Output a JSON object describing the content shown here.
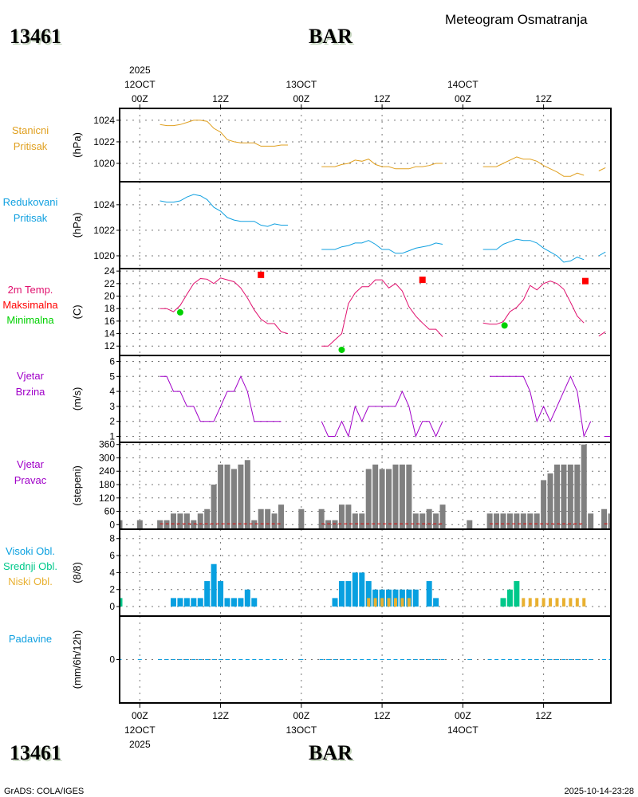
{
  "header": {
    "station_id": "13461",
    "station_name": "BAR",
    "title": "Meteogram Osmatranja"
  },
  "footer": {
    "credit": "GrADS: COLA/IGES",
    "timestamp": "2025-10-14-23:28"
  },
  "time_axis": {
    "year": "2025",
    "day_labels": [
      {
        "hour": 0,
        "label": "12OCT"
      },
      {
        "hour": 24,
        "label": "13OCT"
      },
      {
        "hour": 48,
        "label": "14OCT"
      }
    ],
    "hour_labels": [
      {
        "hour": 0,
        "label": "00Z"
      },
      {
        "hour": 12,
        "label": "12Z"
      },
      {
        "hour": 24,
        "label": "00Z"
      },
      {
        "hour": 36,
        "label": "12Z"
      },
      {
        "hour": 48,
        "label": "00Z"
      },
      {
        "hour": 60,
        "label": "12Z"
      }
    ],
    "xlim_hours": [
      -3,
      70
    ]
  },
  "colors": {
    "station_pressure": "#e0a020",
    "reduced_pressure": "#10a0e0",
    "temp": "#e0106e",
    "tmax": "#ff0000",
    "tmin": "#00d000",
    "wind": "#a000c8",
    "wind_dir": "#808080",
    "high_cloud": "#08a0e0",
    "mid_cloud": "#00c88a",
    "low_cloud": "#e8b030",
    "precip": "#10a0e0"
  },
  "panels": {
    "station_pressure": {
      "labels": [
        "Stanicni",
        "Pritisak"
      ],
      "unit": "(hPa)"
    },
    "reduced_pressure": {
      "labels": [
        "Redukovani",
        "Pritisak"
      ],
      "unit": "(hPa)"
    },
    "temperature": {
      "labels": [
        "2m Temp.",
        "Maksimalna",
        "Minimalna"
      ],
      "unit": "(C)"
    },
    "wind_speed": {
      "labels": [
        "Vjetar",
        "Brzina"
      ],
      "unit": "(m/s)"
    },
    "wind_dir": {
      "labels": [
        "Vjetar",
        "Pravac"
      ],
      "unit": "(stepeni)"
    },
    "clouds": {
      "labels": [
        "Visoki Obl.",
        "Srednji Obl.",
        "Niski Obl."
      ],
      "unit": "(8/8)"
    },
    "precip": {
      "labels": [
        "Padavine"
      ],
      "unit": "(mm/6h/12h)"
    }
  },
  "chart_data": [
    {
      "type": "line",
      "title": "Stanicni Pritisak",
      "ylabel": "(hPa)",
      "ylim": [
        1018.3,
        1025.1
      ],
      "yticks": [
        1020,
        1022,
        1024
      ],
      "grid": true,
      "segments": [
        {
          "start": 3,
          "values": [
            1023.6,
            1023.5,
            1023.5,
            1023.6,
            1023.8,
            1024.0,
            1024.0,
            1023.9,
            1023.25,
            1022.9,
            1022.2,
            1022.0,
            1021.9,
            1021.9,
            1021.9,
            1021.6,
            1021.6,
            1021.6,
            1021.7,
            1021.7
          ]
        },
        {
          "start": 27,
          "values": [
            1019.7,
            1019.7,
            1019.7,
            1019.9,
            1020.0,
            1020.3,
            1020.2,
            1020.4,
            1019.9,
            1019.7,
            1019.7,
            1019.5,
            1019.5,
            1019.5,
            1019.7,
            1019.7,
            1019.8,
            1020.0,
            1020.0
          ]
        },
        {
          "start": 51,
          "values": [
            1019.7,
            1019.7,
            1019.7,
            1020.0,
            1020.3,
            1020.6,
            1020.4,
            1020.4,
            1020.2,
            1019.8,
            1019.5,
            1019.2,
            1018.8,
            1018.8,
            1019.1,
            1018.9
          ]
        },
        {
          "start": 68.2,
          "values": [
            1019.3,
            1019.6
          ]
        }
      ]
    },
    {
      "type": "line",
      "title": "Redukovani Pritisak",
      "ylabel": "(hPa)",
      "ylim": [
        1019.0,
        1025.8
      ],
      "yticks": [
        1020,
        1022,
        1024
      ],
      "grid": true,
      "segments": [
        {
          "start": 3,
          "values": [
            1024.3,
            1024.2,
            1024.2,
            1024.3,
            1024.6,
            1024.8,
            1024.7,
            1024.4,
            1023.8,
            1023.5,
            1023.0,
            1022.8,
            1022.7,
            1022.7,
            1022.7,
            1022.4,
            1022.3,
            1022.5,
            1022.4,
            1022.4
          ]
        },
        {
          "start": 27,
          "values": [
            1020.5,
            1020.5,
            1020.5,
            1020.7,
            1020.8,
            1021.0,
            1021.0,
            1021.2,
            1020.9,
            1020.5,
            1020.5,
            1020.2,
            1020.2,
            1020.4,
            1020.6,
            1020.7,
            1020.8,
            1021.0,
            1020.9
          ]
        },
        {
          "start": 51,
          "values": [
            1020.5,
            1020.5,
            1020.5,
            1020.9,
            1021.1,
            1021.3,
            1021.2,
            1021.2,
            1021.0,
            1020.6,
            1020.3,
            1020.0,
            1019.5,
            1019.6,
            1019.9,
            1019.7
          ]
        },
        {
          "start": 68.2,
          "values": [
            1020.0,
            1020.3
          ]
        }
      ]
    },
    {
      "type": "line",
      "title": "2m Temp. / Maksimalna / Minimalna",
      "ylabel": "(C)",
      "ylim": [
        10.5,
        24.4
      ],
      "yticks": [
        12,
        14,
        16,
        18,
        20,
        22,
        24
      ],
      "grid": true,
      "segments": [
        {
          "start": 3,
          "values": [
            18,
            18,
            17.5,
            18.5,
            20.3,
            22,
            22.8,
            22.7,
            22,
            22.9,
            22.6,
            22.3,
            21.3,
            19.7,
            17.8,
            16.3,
            15.6,
            15.6,
            14.3,
            14
          ]
        },
        {
          "start": 27,
          "values": [
            12,
            12,
            13,
            14,
            18.8,
            20.5,
            21.5,
            21.5,
            22.6,
            22.6,
            21.3,
            22,
            20.8,
            18.3,
            16.8,
            15.7,
            14.7,
            14.7,
            13.5
          ]
        },
        {
          "start": 51,
          "values": [
            15.7,
            15.5,
            15.5,
            15.9,
            17.5,
            18.2,
            19.4,
            21.7,
            21.0,
            22,
            22.4,
            22,
            21.1,
            19,
            16.8,
            15.7
          ]
        },
        {
          "start": 68.2,
          "values": [
            13.6,
            14.3
          ]
        }
      ],
      "tmax": [
        [
          18,
          23.4
        ],
        [
          42,
          22.6
        ],
        [
          66.2,
          22.4
        ]
      ],
      "tmin": [
        [
          6,
          17.4
        ],
        [
          30,
          11.4
        ],
        [
          54.2,
          15.3
        ]
      ]
    },
    {
      "type": "line",
      "title": "Vjetar Brzina",
      "ylabel": "(m/s)",
      "ylim": [
        0.6,
        6.4
      ],
      "yticks": [
        1,
        2,
        3,
        4,
        5,
        6
      ],
      "grid": true,
      "segments": [
        {
          "start": 3,
          "values": [
            5,
            5,
            4,
            4,
            3,
            3,
            2,
            2,
            2,
            3,
            4,
            4,
            5,
            4,
            2,
            2,
            2,
            2,
            2
          ]
        },
        {
          "start": 27,
          "values": [
            2,
            1,
            1,
            2,
            1,
            3,
            2,
            3,
            3,
            3,
            3,
            3,
            4,
            3,
            1,
            2,
            2,
            1,
            2
          ]
        },
        {
          "start": 52,
          "values": [
            5,
            5,
            5,
            5,
            5,
            5,
            4,
            2,
            3,
            2,
            3,
            4,
            5,
            4,
            1,
            2
          ]
        },
        {
          "start": 69,
          "values": [
            1,
            1
          ]
        }
      ]
    },
    {
      "type": "bar",
      "title": "Vjetar Pravac",
      "ylabel": "(stepeni)",
      "ylim": [
        -20.4,
        369.7
      ],
      "yticks": [
        0,
        60,
        120,
        180,
        240,
        300,
        360
      ],
      "grid": true,
      "bars": [
        [
          -3,
          20
        ],
        [
          0,
          20
        ],
        [
          3,
          20
        ],
        [
          4,
          20
        ],
        [
          5,
          50
        ],
        [
          6,
          50
        ],
        [
          7,
          50
        ],
        [
          8,
          20
        ],
        [
          9,
          50
        ],
        [
          10,
          70
        ],
        [
          11,
          180
        ],
        [
          12,
          270
        ],
        [
          13,
          270
        ],
        [
          14,
          250
        ],
        [
          15,
          270
        ],
        [
          16,
          290
        ],
        [
          17,
          20
        ],
        [
          18,
          70
        ],
        [
          19,
          70
        ],
        [
          20,
          50
        ],
        [
          21,
          90
        ],
        [
          24,
          70
        ],
        [
          27,
          70
        ],
        [
          28,
          20
        ],
        [
          29,
          20
        ],
        [
          30,
          90
        ],
        [
          31,
          90
        ],
        [
          32,
          50
        ],
        [
          33,
          50
        ],
        [
          34,
          250
        ],
        [
          35,
          270
        ],
        [
          36,
          250
        ],
        [
          37,
          250
        ],
        [
          38,
          270
        ],
        [
          39,
          270
        ],
        [
          40,
          270
        ],
        [
          41,
          50
        ],
        [
          42,
          50
        ],
        [
          43,
          70
        ],
        [
          44,
          50
        ],
        [
          45,
          90
        ],
        [
          49,
          20
        ],
        [
          52,
          50
        ],
        [
          53,
          50
        ],
        [
          54,
          50
        ],
        [
          55,
          50
        ],
        [
          56,
          50
        ],
        [
          57,
          50
        ],
        [
          58,
          50
        ],
        [
          59,
          50
        ],
        [
          60,
          200
        ],
        [
          61,
          230
        ],
        [
          62,
          270
        ],
        [
          63,
          270
        ],
        [
          64,
          270
        ],
        [
          65,
          270
        ],
        [
          66,
          360
        ],
        [
          67,
          50
        ],
        [
          69,
          70
        ],
        [
          70,
          50
        ]
      ],
      "zero_line_segments": [
        [
          3,
          21
        ],
        [
          27,
          45
        ],
        [
          52,
          66
        ],
        [
          69,
          70
        ]
      ]
    },
    {
      "type": "bar",
      "title": "Oblacnost",
      "ylabel": "(8/8)",
      "ylim": [
        -1.12,
        9.1
      ],
      "yticks": [
        0,
        2,
        4,
        6,
        8
      ],
      "grid": true,
      "series": [
        {
          "name": "Visoki Obl.",
          "bars": [
            [
              5,
              1
            ],
            [
              6,
              1
            ],
            [
              7,
              1
            ],
            [
              8,
              1
            ],
            [
              9,
              1
            ],
            [
              10,
              3
            ],
            [
              11,
              5
            ],
            [
              12,
              3
            ],
            [
              13,
              1
            ],
            [
              14,
              1
            ],
            [
              15,
              1
            ],
            [
              16,
              2
            ],
            [
              17,
              1
            ],
            [
              29,
              1
            ],
            [
              30,
              3
            ],
            [
              31,
              3
            ],
            [
              32,
              4
            ],
            [
              33,
              4
            ],
            [
              34,
              3
            ],
            [
              35,
              2
            ],
            [
              36,
              2
            ],
            [
              37,
              2
            ],
            [
              38,
              2
            ],
            [
              39,
              2
            ],
            [
              40,
              2
            ],
            [
              41,
              2
            ],
            [
              43,
              3
            ],
            [
              44,
              1
            ]
          ]
        },
        {
          "name": "Srednji Obl.",
          "bars": [
            [
              -3,
              1
            ],
            [
              54,
              1
            ],
            [
              55,
              2
            ],
            [
              56,
              3
            ]
          ]
        },
        {
          "name": "Niski Obl.",
          "bars": [
            [
              34,
              1
            ],
            [
              35,
              1
            ],
            [
              36,
              1
            ],
            [
              37,
              1
            ],
            [
              38,
              1
            ],
            [
              39,
              1
            ],
            [
              40,
              1
            ],
            [
              57,
              1
            ],
            [
              58,
              1
            ],
            [
              59,
              1
            ],
            [
              60,
              1
            ],
            [
              61,
              1
            ],
            [
              62,
              1
            ],
            [
              63,
              1
            ],
            [
              64,
              1
            ],
            [
              65,
              1
            ],
            [
              66,
              1
            ]
          ]
        }
      ]
    },
    {
      "type": "bar",
      "title": "Padavine",
      "ylabel": "(mm/6h/12h)",
      "ylim": [
        -1,
        1
      ],
      "yticks": [
        0
      ],
      "grid": true,
      "zero_ranges": [
        [
          -3,
          -3
        ],
        [
          0,
          0
        ],
        [
          3,
          21
        ],
        [
          24,
          24
        ],
        [
          27,
          45
        ],
        [
          49,
          49
        ],
        [
          52,
          67
        ],
        [
          69,
          70
        ]
      ]
    }
  ]
}
